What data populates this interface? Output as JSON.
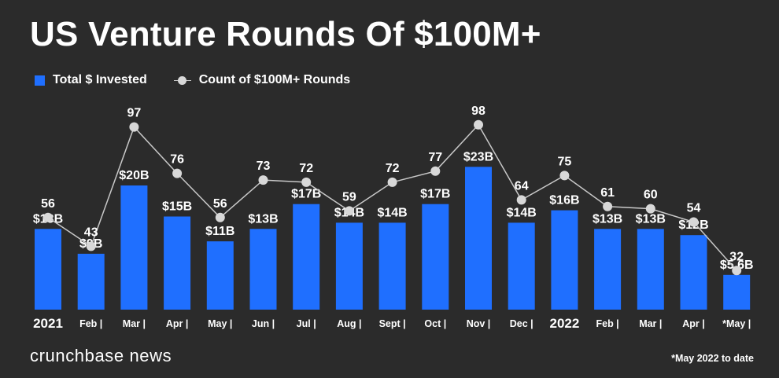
{
  "title": "US Venture Rounds Of $100M+",
  "legend": {
    "bar_label": "Total $ Invested",
    "line_label": "Count of $100M+ Rounds"
  },
  "footnote": "*May 2022 to date",
  "brand": "crunchbase news",
  "colors": {
    "background": "#2b2b2b",
    "bar": "#1f6fff",
    "line": "#c8c8c8",
    "point": "#d8d8d8",
    "text": "#ffffff"
  },
  "chart_data": {
    "type": "bar",
    "categories": [
      "2021",
      "Feb |",
      "Mar |",
      "Apr |",
      "May |",
      "Jun |",
      "Jul |",
      "Aug |",
      "Sept |",
      "Oct |",
      "Nov |",
      "Dec |",
      "2022",
      "Feb |",
      "Mar |",
      "Apr |",
      "*May |"
    ],
    "series": [
      {
        "name": "Total $ Invested",
        "type": "bar",
        "values": [
          13,
          9,
          20,
          15,
          11,
          13,
          17,
          14,
          14,
          17,
          23,
          14,
          16,
          13,
          13,
          12,
          5.6
        ],
        "labels": [
          "$13B",
          "$9B",
          "$20B",
          "$15B",
          "$11B",
          "$13B",
          "$17B",
          "$14B",
          "$14B",
          "$17B",
          "$23B",
          "$14B",
          "$16B",
          "$13B",
          "$13B",
          "$12B",
          "$5.6B"
        ]
      },
      {
        "name": "Count of $100M+ Rounds",
        "type": "line",
        "values": [
          56,
          43,
          97,
          76,
          56,
          73,
          72,
          59,
          72,
          77,
          98,
          64,
          75,
          61,
          60,
          54,
          32
        ],
        "labels": [
          "56",
          "43",
          "97",
          "76",
          "56",
          "73",
          "72",
          "59",
          "72",
          "77",
          "98",
          "64",
          "75",
          "61",
          "60",
          "54",
          "32"
        ]
      }
    ],
    "bold_categories": [
      "2021",
      "2022"
    ],
    "grid": false,
    "legend_position": "top-left"
  }
}
